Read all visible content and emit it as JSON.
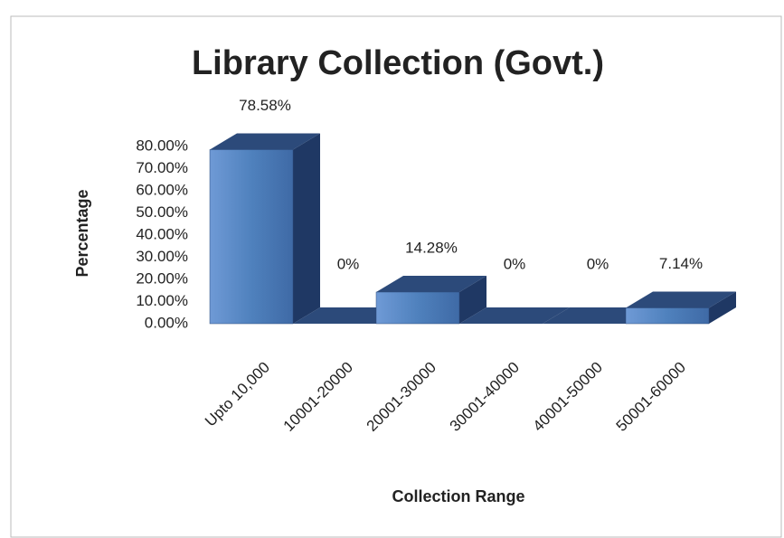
{
  "chart_data": {
    "type": "bar3d",
    "title": "Library Collection (Govt.)",
    "y_label": "Percentage",
    "x_label": "Collection Range",
    "categories": [
      "Upto 10,000",
      "10001-20000",
      "20001-30000",
      "30001-40000",
      "40001-50000",
      "50001-60000"
    ],
    "values": [
      78.58,
      0,
      14.28,
      0,
      0,
      7.14
    ],
    "value_labels": [
      "78.58%",
      "0%",
      "14.28%",
      "0%",
      "0%",
      "7.14%"
    ],
    "color": "#4f81bd",
    "ylim": [
      0,
      80
    ],
    "yticks": [
      {
        "value": 0,
        "label": "0.00%"
      },
      {
        "value": 10,
        "label": "10.00%"
      },
      {
        "value": 20,
        "label": "20.00%"
      },
      {
        "value": 30,
        "label": "30.00%"
      },
      {
        "value": 40,
        "label": "40.00%"
      },
      {
        "value": 50,
        "label": "50.00%"
      },
      {
        "value": 60,
        "label": "60.00%"
      },
      {
        "value": 70,
        "label": "70.00%"
      },
      {
        "value": 80,
        "label": "80.00%"
      }
    ]
  }
}
